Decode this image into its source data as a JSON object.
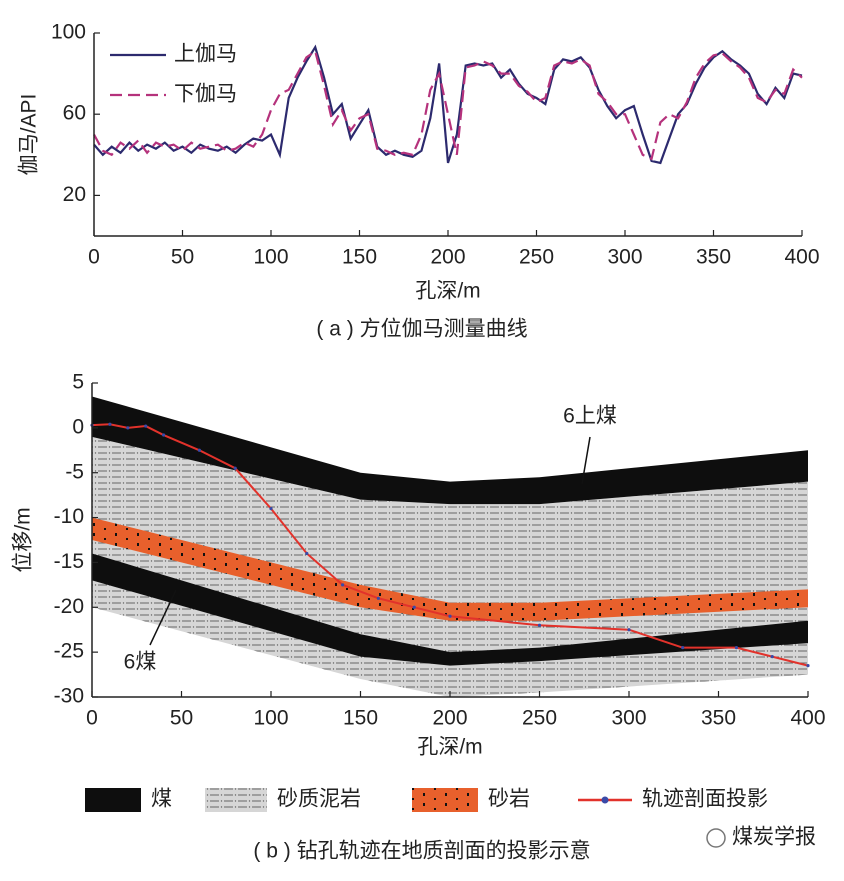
{
  "chart_data": [
    {
      "type": "line",
      "caption": "( a ) 方位伽马测量曲线",
      "xlabel": "孔深/m",
      "ylabel": "伽马/API",
      "x": [
        0,
        5,
        10,
        15,
        20,
        25,
        30,
        35,
        40,
        45,
        50,
        55,
        60,
        65,
        70,
        75,
        80,
        85,
        90,
        95,
        100,
        105,
        110,
        115,
        120,
        125,
        130,
        135,
        140,
        145,
        150,
        155,
        160,
        165,
        170,
        175,
        180,
        185,
        190,
        195,
        200,
        205,
        210,
        215,
        220,
        225,
        230,
        235,
        240,
        245,
        250,
        255,
        260,
        265,
        270,
        275,
        280,
        285,
        290,
        295,
        300,
        305,
        310,
        315,
        320,
        325,
        330,
        335,
        340,
        345,
        350,
        355,
        360,
        365,
        370,
        375,
        380,
        385,
        390,
        395,
        400
      ],
      "series": [
        {
          "name": "上伽马",
          "color": "#2c2a6e",
          "dash": false,
          "values": [
            45,
            40,
            44,
            41,
            46,
            42,
            45,
            43,
            46,
            42,
            44,
            41,
            45,
            43,
            42,
            44,
            41,
            45,
            48,
            47,
            50,
            40,
            68,
            78,
            86,
            93,
            78,
            60,
            65,
            48,
            55,
            62,
            44,
            40,
            42,
            40,
            39,
            42,
            58,
            85,
            36,
            50,
            84,
            85,
            84,
            85,
            78,
            82,
            75,
            70,
            68,
            65,
            82,
            87,
            86,
            88,
            83,
            72,
            64,
            58,
            62,
            64,
            50,
            37,
            36,
            48,
            60,
            65,
            75,
            83,
            88,
            91,
            87,
            84,
            80,
            70,
            65,
            73,
            68,
            80,
            79
          ]
        },
        {
          "name": "下伽马",
          "color": "#b5327c",
          "dash": true,
          "values": [
            50,
            42,
            40,
            46,
            43,
            47,
            41,
            46,
            44,
            45,
            42,
            46,
            43,
            44,
            45,
            42,
            43,
            46,
            44,
            50,
            62,
            70,
            72,
            80,
            88,
            91,
            74,
            55,
            62,
            52,
            58,
            60,
            43,
            42,
            40,
            41,
            40,
            50,
            72,
            80,
            60,
            40,
            83,
            84,
            86,
            84,
            80,
            80,
            74,
            71,
            66,
            68,
            84,
            86,
            85,
            87,
            84,
            70,
            66,
            60,
            60,
            50,
            40,
            38,
            56,
            60,
            58,
            66,
            78,
            85,
            89,
            90,
            86,
            83,
            78,
            68,
            66,
            72,
            70,
            82,
            78
          ]
        }
      ],
      "xlim": [
        0,
        400
      ],
      "ylim": [
        0,
        100
      ],
      "xticks": [
        0,
        50,
        100,
        150,
        200,
        250,
        300,
        350,
        400
      ],
      "yticks": [
        20,
        60,
        100
      ]
    },
    {
      "type": "section",
      "caption": "( b ) 钻孔轨迹在地质剖面的投影示意",
      "xlabel": "孔深/m",
      "ylabel": "位移/m",
      "x": [
        0,
        150,
        200,
        250,
        400
      ],
      "series": [
        {
          "name": "煤",
          "color": "#0e0e0e",
          "pattern": "solid",
          "bands": [
            {
              "top": [
                3.5,
                -5,
                -6,
                -5.5,
                -2.5
              ],
              "bottom": [
                -1,
                -8,
                -8.5,
                -8.5,
                -6
              ]
            },
            {
              "top": [
                -14,
                -23,
                -25,
                -24.5,
                -21.5
              ],
              "bottom": [
                -17,
                -25.5,
                -26.5,
                -26,
                -24
              ]
            }
          ]
        },
        {
          "name": "砂质泥岩",
          "color": "#cfcfcf",
          "pattern": "dash",
          "bands": [
            {
              "top": [
                -1,
                -8,
                -8.5,
                -8.5,
                -6
              ],
              "bottom": [
                -20,
                -28,
                -30,
                -29.5,
                -27.5
              ]
            }
          ]
        },
        {
          "name": "砂岩",
          "color": "#e8602c",
          "pattern": "dots",
          "bands": [
            {
              "top": [
                -10,
                -17.5,
                -19.5,
                -19.5,
                -18
              ],
              "bottom": [
                -12.5,
                -20,
                -21.5,
                -21.5,
                -20
              ]
            }
          ]
        },
        {
          "name": "轨迹剖面投影",
          "color": "#e2322b",
          "marker": "#3a4aa8",
          "x": [
            0,
            10,
            20,
            30,
            40,
            60,
            80,
            100,
            120,
            140,
            160,
            180,
            200,
            250,
            300,
            330,
            360,
            380,
            400
          ],
          "values": [
            0.3,
            0.4,
            0,
            0.2,
            -0.8,
            -2.5,
            -4.5,
            -9,
            -14,
            -17.5,
            -19,
            -20,
            -21,
            -22,
            -22.5,
            -24.5,
            -24.5,
            -25.5,
            -26.5
          ]
        }
      ],
      "annotations": [
        "6上煤",
        "6煤"
      ],
      "xlim": [
        0,
        400
      ],
      "ylim": [
        -30,
        5
      ],
      "xticks": [
        0,
        50,
        100,
        150,
        200,
        250,
        300,
        350,
        400
      ],
      "yticks": [
        -30,
        -25,
        -20,
        -15,
        -10,
        -5,
        0,
        5
      ]
    }
  ],
  "watermark": "煤炭学报"
}
